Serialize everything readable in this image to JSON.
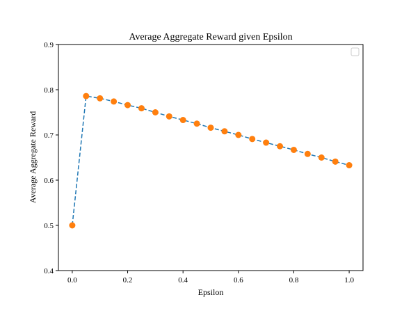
{
  "chart_data": {
    "type": "line",
    "title": "Average Aggregate Reward given Epsilon",
    "xlabel": "Epsilon",
    "ylabel": "Average Aggregate Reward",
    "xlim": [
      -0.05,
      1.05
    ],
    "ylim": [
      0.4,
      0.9
    ],
    "xticks": [
      "0.0",
      "0.2",
      "0.4",
      "0.6",
      "0.8",
      "1.0"
    ],
    "yticks": [
      "0.4",
      "0.5",
      "0.6",
      "0.7",
      "0.8",
      "0.9"
    ],
    "grid": false,
    "legend": "top-right (empty)",
    "series": [
      {
        "line_color": "#1f77b4",
        "line_style": "dashed",
        "marker_color": "#ff7f0e",
        "x": [
          0.0,
          0.05,
          0.1,
          0.15,
          0.2,
          0.25,
          0.3,
          0.35,
          0.4,
          0.45,
          0.5,
          0.55,
          0.6,
          0.65,
          0.7,
          0.75,
          0.8,
          0.85,
          0.9,
          0.95,
          1.0
        ],
        "y": [
          0.5,
          0.786,
          0.781,
          0.774,
          0.766,
          0.759,
          0.75,
          0.741,
          0.733,
          0.725,
          0.716,
          0.708,
          0.7,
          0.691,
          0.683,
          0.675,
          0.667,
          0.658,
          0.65,
          0.641,
          0.633
        ]
      }
    ]
  }
}
